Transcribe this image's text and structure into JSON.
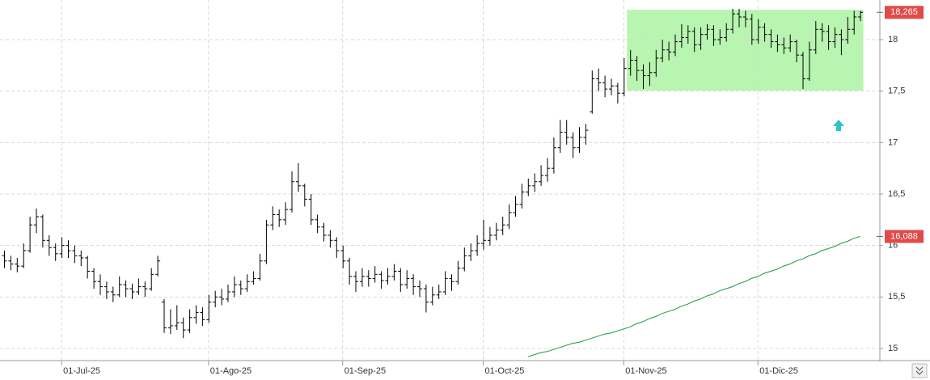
{
  "chart_data": {
    "type": "ohlc",
    "categories": [
      null,
      null,
      null,
      null,
      null,
      null,
      null,
      null,
      null,
      "01-Jul-25",
      null,
      null,
      null,
      null,
      null,
      null,
      null,
      null,
      null,
      null,
      null,
      null,
      null,
      null,
      null,
      null,
      null,
      null,
      null,
      null,
      null,
      null,
      "01-Ago-25",
      null,
      null,
      null,
      null,
      null,
      null,
      null,
      null,
      null,
      null,
      null,
      null,
      null,
      null,
      null,
      null,
      null,
      null,
      null,
      null,
      "01-Sep-25",
      null,
      null,
      null,
      null,
      null,
      null,
      null,
      null,
      null,
      null,
      null,
      null,
      null,
      null,
      null,
      null,
      null,
      null,
      null,
      null,
      null,
      "01-Oct-25",
      null,
      null,
      null,
      null,
      null,
      null,
      null,
      null,
      null,
      null,
      null,
      null,
      null,
      null,
      null,
      null,
      null,
      null,
      null,
      null,
      null,
      "01-Nov-25",
      null,
      null,
      null,
      null,
      null,
      null,
      null,
      null,
      null,
      null,
      null,
      null,
      null,
      null,
      null,
      null,
      null,
      null,
      null,
      null,
      "01-Dic-25",
      null,
      null,
      null,
      null,
      null,
      null,
      null,
      null,
      null,
      null,
      null,
      null,
      null,
      null,
      null,
      null
    ],
    "color": "#000000",
    "ohlc": [
      [
        15.9,
        15.95,
        15.78,
        15.85
      ],
      [
        15.85,
        15.9,
        15.76,
        15.82
      ],
      [
        15.82,
        15.88,
        15.74,
        15.8
      ],
      [
        15.8,
        16.02,
        15.78,
        15.95
      ],
      [
        15.95,
        16.28,
        15.93,
        16.2
      ],
      [
        16.2,
        16.36,
        16.12,
        16.28
      ],
      [
        16.28,
        16.3,
        15.98,
        16.05
      ],
      [
        16.05,
        16.1,
        15.9,
        15.98
      ],
      [
        15.98,
        16.02,
        15.85,
        15.92
      ],
      [
        15.92,
        16.08,
        15.88,
        16.0
      ],
      [
        16.0,
        16.05,
        15.88,
        15.95
      ],
      [
        15.95,
        16.0,
        15.83,
        15.9
      ],
      [
        15.9,
        15.95,
        15.8,
        15.88
      ],
      [
        15.88,
        15.9,
        15.68,
        15.75
      ],
      [
        15.75,
        15.78,
        15.58,
        15.65
      ],
      [
        15.65,
        15.72,
        15.52,
        15.6
      ],
      [
        15.6,
        15.65,
        15.48,
        15.55
      ],
      [
        15.55,
        15.6,
        15.45,
        15.52
      ],
      [
        15.52,
        15.7,
        15.5,
        15.62
      ],
      [
        15.62,
        15.66,
        15.5,
        15.58
      ],
      [
        15.58,
        15.63,
        15.48,
        15.55
      ],
      [
        15.55,
        15.68,
        15.52,
        15.6
      ],
      [
        15.6,
        15.65,
        15.5,
        15.58
      ],
      [
        15.58,
        15.78,
        15.56,
        15.72
      ],
      [
        15.72,
        15.9,
        15.7,
        15.85
      ],
      [
        15.45,
        15.48,
        15.15,
        15.2
      ],
      [
        15.2,
        15.38,
        15.14,
        15.22
      ],
      [
        15.22,
        15.42,
        15.18,
        15.25
      ],
      [
        15.25,
        15.3,
        15.1,
        15.18
      ],
      [
        15.18,
        15.38,
        15.15,
        15.3
      ],
      [
        15.3,
        15.42,
        15.24,
        15.35
      ],
      [
        15.35,
        15.4,
        15.22,
        15.28
      ],
      [
        15.28,
        15.52,
        15.25,
        15.45
      ],
      [
        15.45,
        15.56,
        15.4,
        15.5
      ],
      [
        15.5,
        15.58,
        15.42,
        15.48
      ],
      [
        15.48,
        15.62,
        15.45,
        15.55
      ],
      [
        15.55,
        15.7,
        15.5,
        15.62
      ],
      [
        15.62,
        15.66,
        15.52,
        15.58
      ],
      [
        15.58,
        15.72,
        15.55,
        15.65
      ],
      [
        15.65,
        15.75,
        15.62,
        15.68
      ],
      [
        15.68,
        15.92,
        15.66,
        15.85
      ],
      [
        15.85,
        16.25,
        15.82,
        16.2
      ],
      [
        16.2,
        16.38,
        16.15,
        16.3
      ],
      [
        16.3,
        16.35,
        16.18,
        16.25
      ],
      [
        16.25,
        16.42,
        16.2,
        16.35
      ],
      [
        16.35,
        16.72,
        16.32,
        16.62
      ],
      [
        16.62,
        16.8,
        16.52,
        16.58
      ],
      [
        16.58,
        16.6,
        16.38,
        16.45
      ],
      [
        16.45,
        16.5,
        16.2,
        16.25
      ],
      [
        16.25,
        16.3,
        16.12,
        16.18
      ],
      [
        16.18,
        16.22,
        16.04,
        16.1
      ],
      [
        16.1,
        16.15,
        15.98,
        16.05
      ],
      [
        16.05,
        16.08,
        15.88,
        15.95
      ],
      [
        15.95,
        16.0,
        15.78,
        15.85
      ],
      [
        15.85,
        15.88,
        15.62,
        15.7
      ],
      [
        15.7,
        15.75,
        15.55,
        15.65
      ],
      [
        15.65,
        15.78,
        15.6,
        15.7
      ],
      [
        15.7,
        15.76,
        15.6,
        15.68
      ],
      [
        15.68,
        15.8,
        15.64,
        15.72
      ],
      [
        15.72,
        15.75,
        15.58,
        15.66
      ],
      [
        15.66,
        15.78,
        15.62,
        15.7
      ],
      [
        15.7,
        15.82,
        15.66,
        15.75
      ],
      [
        15.75,
        15.78,
        15.55,
        15.62
      ],
      [
        15.62,
        15.76,
        15.58,
        15.68
      ],
      [
        15.68,
        15.72,
        15.52,
        15.6
      ],
      [
        15.6,
        15.66,
        15.5,
        15.58
      ],
      [
        15.58,
        15.62,
        15.35,
        15.45
      ],
      [
        15.45,
        15.6,
        15.42,
        15.52
      ],
      [
        15.52,
        15.62,
        15.48,
        15.55
      ],
      [
        15.55,
        15.75,
        15.52,
        15.68
      ],
      [
        15.68,
        15.72,
        15.56,
        15.65
      ],
      [
        15.65,
        15.85,
        15.62,
        15.78
      ],
      [
        15.78,
        15.98,
        15.75,
        15.9
      ],
      [
        15.9,
        16.02,
        15.85,
        15.95
      ],
      [
        15.95,
        16.1,
        15.9,
        16.02
      ],
      [
        16.02,
        16.25,
        15.96,
        16.05
      ],
      [
        16.05,
        16.18,
        16.0,
        16.1
      ],
      [
        16.1,
        16.22,
        16.05,
        16.15
      ],
      [
        16.15,
        16.28,
        16.1,
        16.2
      ],
      [
        16.2,
        16.4,
        16.16,
        16.32
      ],
      [
        16.32,
        16.48,
        16.28,
        16.4
      ],
      [
        16.4,
        16.6,
        16.36,
        16.52
      ],
      [
        16.52,
        16.65,
        16.48,
        16.58
      ],
      [
        16.58,
        16.7,
        16.52,
        16.62
      ],
      [
        16.62,
        16.78,
        16.58,
        16.68
      ],
      [
        16.68,
        16.85,
        16.62,
        16.75
      ],
      [
        16.75,
        17.05,
        16.7,
        16.95
      ],
      [
        16.95,
        17.22,
        16.9,
        17.1
      ],
      [
        17.1,
        17.22,
        16.98,
        17.05
      ],
      [
        17.05,
        17.1,
        16.85,
        16.95
      ],
      [
        16.95,
        17.15,
        16.9,
        17.05
      ],
      [
        17.05,
        17.18,
        16.98,
        17.12
      ],
      [
        17.3,
        17.7,
        17.28,
        17.62
      ],
      [
        17.62,
        17.72,
        17.5,
        17.58
      ],
      [
        17.58,
        17.65,
        17.44,
        17.52
      ],
      [
        17.52,
        17.62,
        17.46,
        17.55
      ],
      [
        17.55,
        17.58,
        17.38,
        17.48
      ],
      [
        17.48,
        17.82,
        17.45,
        17.72
      ],
      [
        17.72,
        17.9,
        17.65,
        17.8
      ],
      [
        17.8,
        17.84,
        17.6,
        17.7
      ],
      [
        17.7,
        17.76,
        17.52,
        17.65
      ],
      [
        17.65,
        17.78,
        17.55,
        17.68
      ],
      [
        17.68,
        17.9,
        17.64,
        17.82
      ],
      [
        17.82,
        18.0,
        17.78,
        17.9
      ],
      [
        17.9,
        17.98,
        17.8,
        17.88
      ],
      [
        17.88,
        18.05,
        17.84,
        17.98
      ],
      [
        17.98,
        18.15,
        17.92,
        18.02
      ],
      [
        18.02,
        18.14,
        17.96,
        18.08
      ],
      [
        18.08,
        18.12,
        17.88,
        17.95
      ],
      [
        17.95,
        18.12,
        17.9,
        18.05
      ],
      [
        18.05,
        18.15,
        18.0,
        18.1
      ],
      [
        18.1,
        18.14,
        17.94,
        18.0
      ],
      [
        18.0,
        18.1,
        17.95,
        18.02
      ],
      [
        18.02,
        18.16,
        17.98,
        18.1
      ],
      [
        18.1,
        18.3,
        18.06,
        18.25
      ],
      [
        18.25,
        18.3,
        18.12,
        18.22
      ],
      [
        18.22,
        18.28,
        18.12,
        18.2
      ],
      [
        18.2,
        18.25,
        17.95,
        18.0
      ],
      [
        18.0,
        18.2,
        17.96,
        18.12
      ],
      [
        18.12,
        18.16,
        17.98,
        18.05
      ],
      [
        18.05,
        18.1,
        17.92,
        17.98
      ],
      [
        17.98,
        18.05,
        17.88,
        17.95
      ],
      [
        17.95,
        18.02,
        17.86,
        17.92
      ],
      [
        17.92,
        18.05,
        17.88,
        17.98
      ],
      [
        17.98,
        18.0,
        17.78,
        17.85
      ],
      [
        17.85,
        17.88,
        17.52,
        17.62
      ],
      [
        17.62,
        17.98,
        17.6,
        17.9
      ],
      [
        17.9,
        18.18,
        17.86,
        18.1
      ],
      [
        18.1,
        18.16,
        17.98,
        18.08
      ],
      [
        18.08,
        18.14,
        17.9,
        17.98
      ],
      [
        17.98,
        18.12,
        17.92,
        18.05
      ],
      [
        18.05,
        18.1,
        17.85,
        18.0
      ],
      [
        18.0,
        18.22,
        17.96,
        18.1
      ],
      [
        18.1,
        18.28,
        18.05,
        18.22
      ],
      [
        18.22,
        18.28,
        18.18,
        18.265
      ]
    ],
    "ma": {
      "color": "#1a9a3a",
      "values": [
        null,
        null,
        null,
        null,
        null,
        null,
        null,
        null,
        null,
        null,
        null,
        null,
        null,
        null,
        null,
        null,
        null,
        null,
        null,
        null,
        null,
        null,
        null,
        null,
        null,
        null,
        null,
        null,
        null,
        null,
        null,
        null,
        null,
        null,
        null,
        null,
        null,
        null,
        null,
        null,
        null,
        null,
        null,
        null,
        null,
        null,
        null,
        null,
        null,
        null,
        null,
        null,
        null,
        null,
        null,
        null,
        null,
        null,
        null,
        null,
        null,
        null,
        null,
        null,
        null,
        null,
        null,
        null,
        null,
        null,
        null,
        null,
        null,
        null,
        null,
        null,
        null,
        null,
        null,
        null,
        null,
        null,
        14.92,
        14.94,
        14.96,
        14.97,
        14.99,
        15.01,
        15.03,
        15.05,
        15.06,
        15.08,
        15.1,
        15.12,
        15.14,
        15.15,
        15.17,
        15.19,
        15.21,
        15.24,
        15.26,
        15.29,
        15.31,
        15.34,
        15.36,
        15.38,
        15.41,
        15.43,
        15.46,
        15.48,
        15.51,
        15.53,
        15.56,
        15.58,
        15.6,
        15.63,
        15.65,
        15.68,
        15.7,
        15.73,
        15.75,
        15.77,
        15.8,
        15.82,
        15.85,
        15.87,
        15.9,
        15.92,
        15.95,
        15.97,
        15.99,
        16.02,
        16.04,
        16.07,
        16.088
      ]
    },
    "zone": {
      "top": 18.29,
      "bottom": 17.505,
      "color": "#b8f5b0"
    },
    "last_labels": [
      {
        "value": 18.265,
        "label": "18,265",
        "color": "#e24a4a"
      },
      {
        "value": 16.088,
        "label": "16,088",
        "color": "#e24a4a"
      }
    ],
    "ylim": [
      14.89,
      18.385
    ],
    "yticks": [
      15,
      {
        "value": 15.5,
        "label": "15,5"
      },
      16,
      {
        "value": 16.5,
        "label": "16,5"
      },
      17,
      {
        "value": 17.5,
        "label": "17,5"
      },
      18
    ],
    "grid": true
  }
}
